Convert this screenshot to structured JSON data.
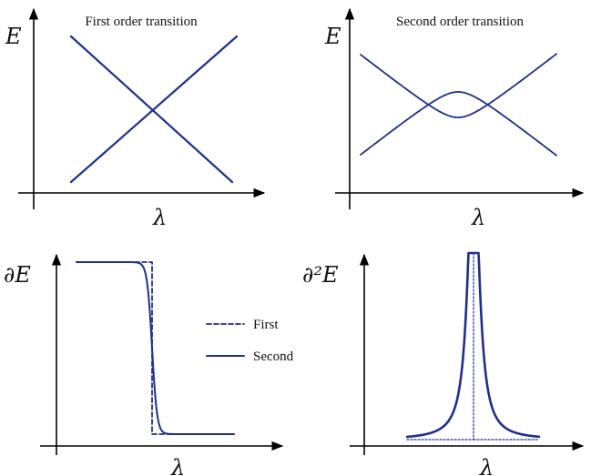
{
  "panels": [
    {
      "title": "First order transition",
      "ylabel": "E",
      "xlabel": "λ"
    },
    {
      "title": "Second order transition",
      "ylabel": "E",
      "xlabel": "λ"
    },
    {
      "title": "",
      "ylabel": "∂E",
      "xlabel": "λ"
    },
    {
      "title": "",
      "ylabel": "∂²E",
      "xlabel": "λ"
    }
  ],
  "legend": {
    "first": "First",
    "second": "Second"
  },
  "colors": {
    "curve": "#1f2f8f",
    "axis": "#000000"
  }
}
